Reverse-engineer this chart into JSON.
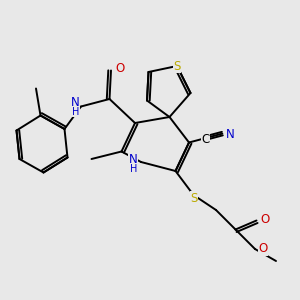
{
  "bg_color": "#e8e8e8",
  "bond_color": "#000000",
  "bond_lw": 1.4,
  "atom_colors": {
    "N": "#0000cc",
    "O": "#cc0000",
    "S": "#bbaa00",
    "C": "#000000"
  },
  "fs": 8.5,
  "fs_small": 7.0
}
